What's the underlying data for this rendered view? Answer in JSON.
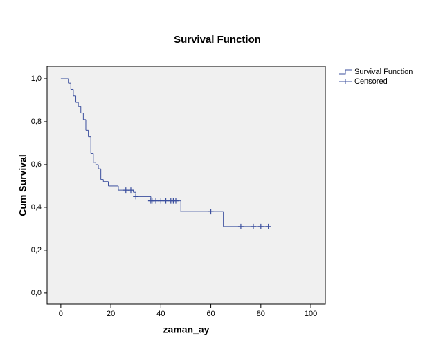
{
  "chart_data": {
    "type": "step",
    "title": "Survival Function",
    "x_label": "zaman_ay",
    "y_label": "Cum Survival",
    "xlim": [
      -5.5,
      105.8
    ],
    "ylim": [
      -0.052,
      1.058
    ],
    "xticks": [
      0,
      20,
      40,
      60,
      80,
      100
    ],
    "yticks": [
      {
        "value": 0,
        "label": "0,0"
      },
      {
        "value": 0.2,
        "label": "0,2"
      },
      {
        "value": 0.4,
        "label": "0,4"
      },
      {
        "value": 0.6,
        "label": "0,6"
      },
      {
        "value": 0.8,
        "label": "0,8"
      },
      {
        "value": 1,
        "label": "1,0"
      }
    ],
    "legend": "right",
    "series": [
      {
        "name": "Survival Function",
        "color": "#3b4f9e",
        "marker": "step",
        "x": [
          0,
          3,
          4,
          5,
          6,
          7,
          8,
          9,
          10,
          11,
          12,
          13,
          14,
          15,
          16,
          17,
          19,
          23,
          29,
          30,
          36,
          48,
          65,
          83
        ],
        "values": [
          1.0,
          0.98,
          0.95,
          0.92,
          0.89,
          0.87,
          0.84,
          0.81,
          0.76,
          0.73,
          0.65,
          0.61,
          0.6,
          0.58,
          0.53,
          0.52,
          0.5,
          0.48,
          0.47,
          0.45,
          0.43,
          0.38,
          0.31,
          0.31
        ]
      },
      {
        "name": "Censored",
        "color": "#3b4f9e",
        "marker": "plus",
        "x": [
          26,
          28,
          30,
          36,
          36.5,
          38,
          40,
          42,
          44,
          45,
          46,
          60,
          72,
          77,
          80,
          83
        ],
        "values": [
          0.48,
          0.48,
          0.45,
          0.43,
          0.43,
          0.43,
          0.43,
          0.43,
          0.43,
          0.43,
          0.43,
          0.38,
          0.31,
          0.31,
          0.31,
          0.31
        ]
      }
    ]
  }
}
